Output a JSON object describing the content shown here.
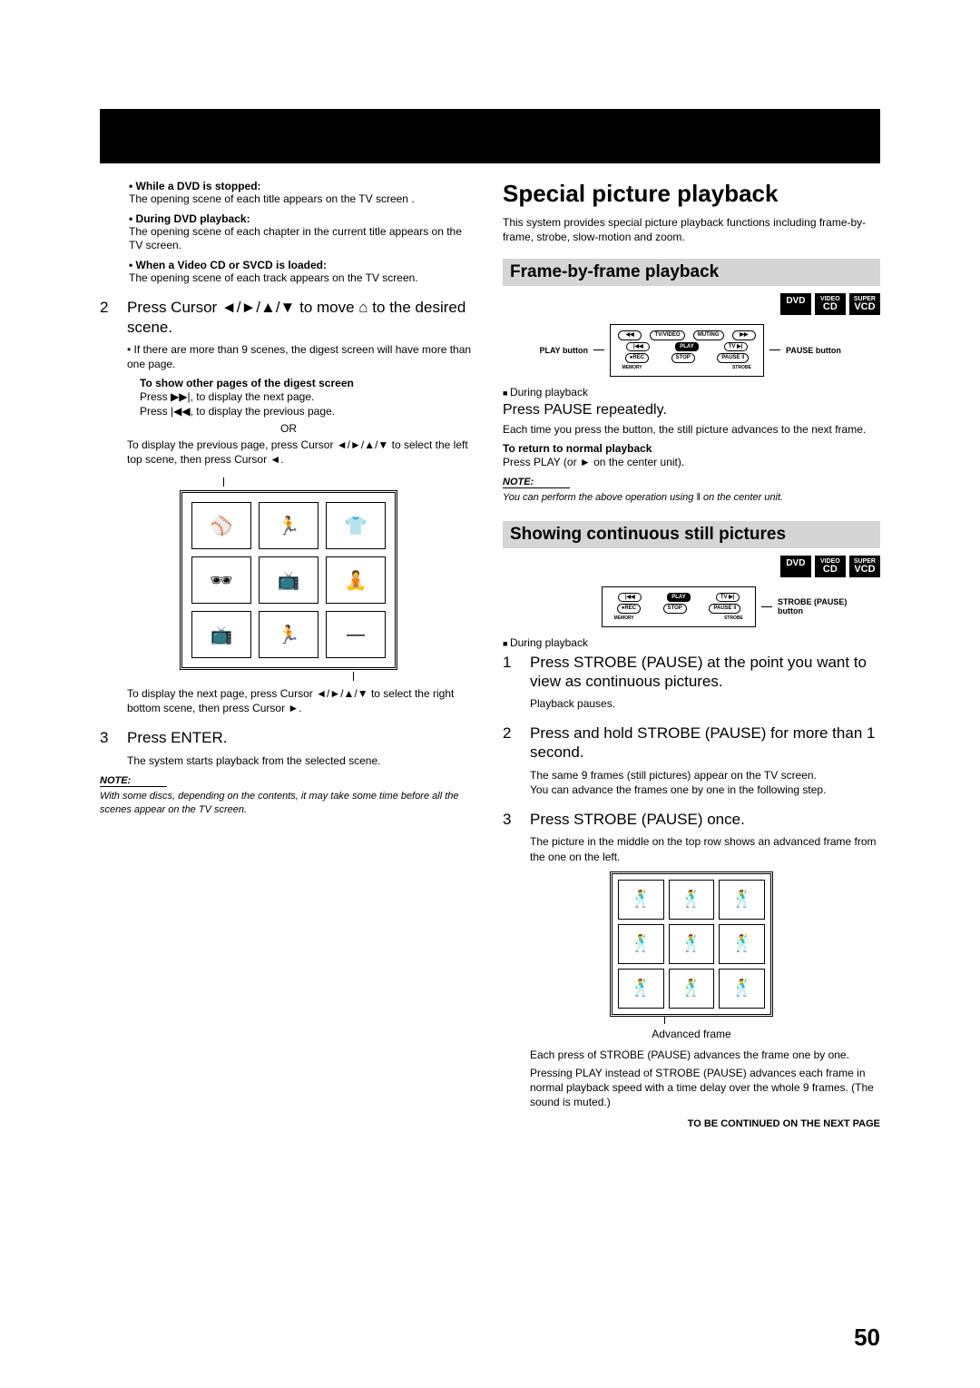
{
  "page_number": "50",
  "left": {
    "bullets": [
      {
        "bold": "While a DVD is stopped:",
        "text": "The opening scene of each title appears on the TV screen ."
      },
      {
        "bold": "During DVD playback:",
        "text": "The opening scene of each chapter in the current title appears on the TV screen."
      },
      {
        "bold": "When a Video CD or SVCD is loaded:",
        "text": "The opening scene of each track appears on the TV screen."
      }
    ],
    "step2_num": "2",
    "step2": "Press Cursor ◄/►/▲/▼ to move  ⌂  to the desired scene.",
    "step2_note": "If there are more than 9 scenes, the digest screen will have more than one page.",
    "show_other_bold": "To show other pages of the digest screen",
    "show_other_l1": "Press ▶▶|, to display the next page.",
    "show_other_l2": "Press |◀◀, to display the previous page.",
    "or": "OR",
    "prev_page_text": "To display the previous page, press Cursor ◄/►/▲/▼ to select the left top scene, then press Cursor ◄.",
    "digest_cells": [
      "⚾",
      "🏃",
      "👕",
      "🕶",
      "📺",
      "🧘",
      "📺",
      "🏃",
      "—"
    ],
    "next_page_text": "To display the next page, press Cursor ◄/►/▲/▼ to select the right bottom scene, then press Cursor ►.",
    "step3_num": "3",
    "step3": "Press ENTER.",
    "step3_body": "The system starts playback from the selected scene.",
    "note_label": "NOTE:",
    "note_body": "With some discs, depending on the contents, it may take some time before all the scenes appear on the TV screen."
  },
  "right": {
    "h1": "Special picture playback",
    "intro": "This system provides special picture playback functions including frame-by-frame, strobe, slow-motion and zoom.",
    "sec1_title": "Frame-by-frame playback",
    "compat": [
      "DVD",
      {
        "top": "VIDEO",
        "bot": "CD"
      },
      {
        "top": "SUPER",
        "bot": "VCD"
      }
    ],
    "remote1": {
      "left_label": "PLAY button",
      "right_label": "PAUSE button",
      "rows": [
        [
          "◀◀",
          "TV/VIDEO",
          "MUTING",
          "▶▶"
        ],
        [
          "|◀◀",
          "PLAY",
          "TV  ▶|"
        ],
        [
          "●REC",
          "STOP",
          "PAUSE ‖"
        ]
      ],
      "sublabels": [
        "MEMORY",
        "",
        "",
        "STROBE"
      ]
    },
    "during1": "During playback",
    "instr1": "Press PAUSE repeatedly.",
    "instr1_body": "Each time you press the button, the still picture advances to the next frame.",
    "return_bold": "To return to normal playback",
    "return_body": "Press PLAY (or ► on the center unit).",
    "note1_label": "NOTE:",
    "note1_body": "You can perform the above operation using ‖ on the center unit.",
    "sec2_title": "Showing continuous still pictures",
    "remote2": {
      "right_label": "STROBE (PAUSE) button",
      "rows": [
        [
          "|◀◀",
          "PLAY",
          "TV  ▶|"
        ],
        [
          "●REC",
          "STOP",
          "PAUSE ‖"
        ]
      ],
      "sublabels": [
        "MEMORY",
        "",
        "",
        "STROBE"
      ]
    },
    "during2": "During playback",
    "s1_num": "1",
    "s1": "Press STROBE (PAUSE) at the point you want to view as continuous pictures.",
    "s1_body": "Playback pauses.",
    "s2_num": "2",
    "s2": "Press and hold STROBE (PAUSE) for more than 1 second.",
    "s2_body1": "The same 9 frames (still pictures) appear on the TV screen.",
    "s2_body2": "You can advance the frames one by one in the following step.",
    "s3_num": "3",
    "s3": "Press STROBE (PAUSE) once.",
    "s3_body": "The picture in the middle on the top row shows an advanced frame from the one on the left.",
    "strobe_icons": [
      "🕺",
      "🕺",
      "🕺",
      "🕺",
      "🕺",
      "🕺",
      "🕺",
      "🕺",
      "🕺"
    ],
    "strobe_caption": "Advanced frame",
    "after1": "Each press of STROBE (PAUSE) advances the frame one by one.",
    "after2": "Pressing PLAY instead of STROBE (PAUSE) advances each frame in normal playback speed with a time delay over the whole 9 frames. (The sound is muted.)",
    "continued": "TO BE CONTINUED ON THE NEXT PAGE"
  }
}
